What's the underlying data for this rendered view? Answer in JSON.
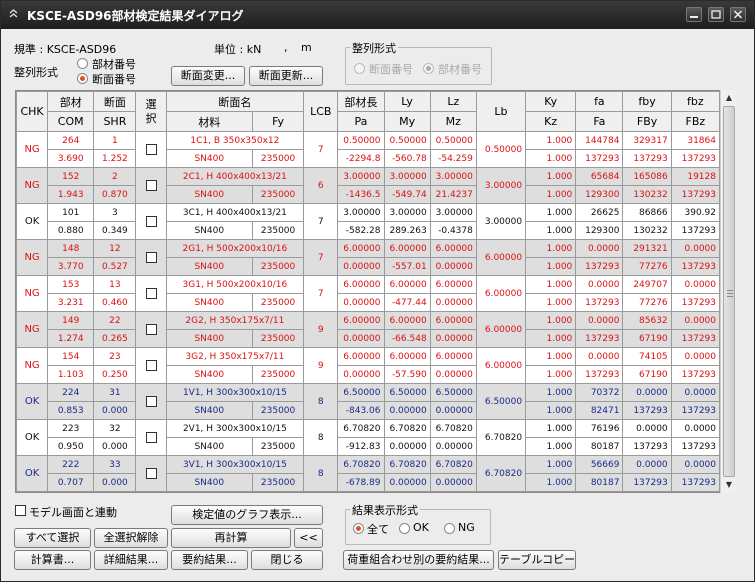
{
  "window": {
    "title": "KSCE-ASD96部材検定結果ダイアログ"
  },
  "info": {
    "standard_label": "規準 : KSCE-ASD96",
    "unit_label": "単位 : kN",
    "unit_sep": ",",
    "unit_len": "m",
    "sort_label": "整列形式",
    "sort_opt1": "部材番号",
    "sort_opt2": "断面番号",
    "group_sort_title": "整列形式",
    "group_opt1": "断面番号",
    "group_opt2": "部材番号"
  },
  "buttons": {
    "section_change": "断面変更...",
    "section_update": "断面更新...",
    "graph": "検定値のグラフ表示...",
    "select_all": "すべて選択",
    "deselect_all": "全選択解除",
    "recalc": "再計算",
    "collapse": "<<",
    "calc_report": "計算書...",
    "detail": "詳細結果...",
    "summary": "要約結果...",
    "close": "閉じる",
    "load_combo_summary": "荷重組合わせ別の要約結果...",
    "table_copy": "テーブルコピー"
  },
  "options": {
    "link_model": "モデル画面と連動",
    "result_group_title": "結果表示形式",
    "all": "全て",
    "ok": "OK",
    "ng": "NG"
  },
  "columns": {
    "chk": "CHK",
    "member": "部材",
    "com": "COM",
    "section": "断面",
    "shr": "SHR",
    "select": "選択",
    "section_name": "断面名",
    "material": "材料",
    "fy": "Fy",
    "lcb": "LCB",
    "member_len": "部材長",
    "pa": "Pa",
    "ly": "Ly",
    "my": "My",
    "lz": "Lz",
    "mz": "Mz",
    "lb": "Lb",
    "ky": "Ky",
    "kz": "Kz",
    "fa_l": "fa",
    "fa_u": "Fa",
    "fby_l": "fby",
    "fby_u": "FBy",
    "fbz_l": "fbz",
    "fbz_u": "FBz"
  },
  "rows": [
    {
      "chk": "NG",
      "color": "r",
      "member": "264",
      "section": "1",
      "com": "3.690",
      "shr": "1.252",
      "name": "1C1, B 350x350x12",
      "mat": "SN400",
      "fy": "235000",
      "lcb": "7",
      "len": "0.50000",
      "pa": "-2294.8",
      "ly": "0.50000",
      "my": "-560.78",
      "lz": "0.50000",
      "mz": "-54.259",
      "lb": "0.50000",
      "ky": "1.000",
      "kz": "1.000",
      "fa": "144784",
      "Fa": "137293",
      "fby": "329317",
      "FBy": "137293",
      "fbz": "31864",
      "FBz": "137293"
    },
    {
      "chk": "NG",
      "color": "r",
      "member": "152",
      "section": "2",
      "com": "1.943",
      "shr": "0.870",
      "name": "2C1, H 400x400x13/21",
      "mat": "SN400",
      "fy": "235000",
      "lcb": "6",
      "len": "3.00000",
      "pa": "-1436.5",
      "ly": "3.00000",
      "my": "-549.74",
      "lz": "3.00000",
      "mz": "21.4237",
      "lb": "3.00000",
      "ky": "1.000",
      "kz": "1.000",
      "fa": "65684",
      "Fa": "129300",
      "fby": "165086",
      "FBy": "130232",
      "fbz": "19128",
      "FBz": "137293"
    },
    {
      "chk": "OK",
      "color": "k",
      "member": "101",
      "section": "3",
      "com": "0.880",
      "shr": "0.349",
      "name": "3C1, H 400x400x13/21",
      "mat": "SN400",
      "fy": "235000",
      "lcb": "7",
      "len": "3.00000",
      "pa": "-582.28",
      "ly": "3.00000",
      "my": "289.263",
      "lz": "3.00000",
      "mz": "-0.4378",
      "lb": "3.00000",
      "ky": "1.000",
      "kz": "1.000",
      "fa": "26625",
      "Fa": "129300",
      "fby": "86866",
      "FBy": "130232",
      "fbz": "390.92",
      "FBz": "137293"
    },
    {
      "chk": "NG",
      "color": "r",
      "member": "148",
      "section": "12",
      "com": "3.770",
      "shr": "0.527",
      "name": "2G1, H 500x200x10/16",
      "mat": "SN400",
      "fy": "235000",
      "lcb": "7",
      "len": "6.00000",
      "pa": "0.00000",
      "ly": "6.00000",
      "my": "-557.01",
      "lz": "6.00000",
      "mz": "0.00000",
      "lb": "6.00000",
      "ky": "1.000",
      "kz": "1.000",
      "fa": "0.0000",
      "Fa": "137293",
      "fby": "291321",
      "FBy": "77276",
      "fbz": "0.0000",
      "FBz": "137293"
    },
    {
      "chk": "NG",
      "color": "r",
      "member": "153",
      "section": "13",
      "com": "3.231",
      "shr": "0.460",
      "name": "3G1, H 500x200x10/16",
      "mat": "SN400",
      "fy": "235000",
      "lcb": "7",
      "len": "6.00000",
      "pa": "0.00000",
      "ly": "6.00000",
      "my": "-477.44",
      "lz": "6.00000",
      "mz": "0.00000",
      "lb": "6.00000",
      "ky": "1.000",
      "kz": "1.000",
      "fa": "0.0000",
      "Fa": "137293",
      "fby": "249707",
      "FBy": "77276",
      "fbz": "0.0000",
      "FBz": "137293"
    },
    {
      "chk": "NG",
      "color": "r",
      "member": "149",
      "section": "22",
      "com": "1.274",
      "shr": "0.265",
      "name": "2G2, H 350x175x7/11",
      "mat": "SN400",
      "fy": "235000",
      "lcb": "9",
      "len": "6.00000",
      "pa": "0.00000",
      "ly": "6.00000",
      "my": "-66.548",
      "lz": "6.00000",
      "mz": "0.00000",
      "lb": "6.00000",
      "ky": "1.000",
      "kz": "1.000",
      "fa": "0.0000",
      "Fa": "137293",
      "fby": "85632",
      "FBy": "67190",
      "fbz": "0.0000",
      "FBz": "137293"
    },
    {
      "chk": "NG",
      "color": "r",
      "member": "154",
      "section": "23",
      "com": "1.103",
      "shr": "0.250",
      "name": "3G2, H 350x175x7/11",
      "mat": "SN400",
      "fy": "235000",
      "lcb": "9",
      "len": "6.00000",
      "pa": "0.00000",
      "ly": "6.00000",
      "my": "-57.590",
      "lz": "6.00000",
      "mz": "0.00000",
      "lb": "6.00000",
      "ky": "1.000",
      "kz": "1.000",
      "fa": "0.0000",
      "Fa": "137293",
      "fby": "74105",
      "FBy": "67190",
      "fbz": "0.0000",
      "FBz": "137293"
    },
    {
      "chk": "OK",
      "color": "b",
      "member": "224",
      "section": "31",
      "com": "0.853",
      "shr": "0.000",
      "name": "1V1, H 300x300x10/15",
      "mat": "SN400",
      "fy": "235000",
      "lcb": "8",
      "len": "6.50000",
      "pa": "-843.06",
      "ly": "6.50000",
      "my": "0.00000",
      "lz": "6.50000",
      "mz": "0.00000",
      "lb": "6.50000",
      "ky": "1.000",
      "kz": "1.000",
      "fa": "70372",
      "Fa": "82471",
      "fby": "0.0000",
      "FBy": "137293",
      "fbz": "0.0000",
      "FBz": "137293"
    },
    {
      "chk": "OK",
      "color": "k",
      "member": "223",
      "section": "32",
      "com": "0.950",
      "shr": "0.000",
      "name": "2V1, H 300x300x10/15",
      "mat": "SN400",
      "fy": "235000",
      "lcb": "8",
      "len": "6.70820",
      "pa": "-912.83",
      "ly": "6.70820",
      "my": "0.00000",
      "lz": "6.70820",
      "mz": "0.00000",
      "lb": "6.70820",
      "ky": "1.000",
      "kz": "1.000",
      "fa": "76196",
      "Fa": "80187",
      "fby": "0.0000",
      "FBy": "137293",
      "fbz": "0.0000",
      "FBz": "137293"
    },
    {
      "chk": "OK",
      "color": "b",
      "member": "222",
      "section": "33",
      "com": "0.707",
      "shr": "0.000",
      "name": "3V1, H 300x300x10/15",
      "mat": "SN400",
      "fy": "235000",
      "lcb": "8",
      "len": "6.70820",
      "pa": "-678.89",
      "ly": "6.70820",
      "my": "0.00000",
      "lz": "6.70820",
      "mz": "0.00000",
      "lb": "6.70820",
      "ky": "1.000",
      "kz": "1.000",
      "fa": "56669",
      "Fa": "80187",
      "fby": "0.0000",
      "FBy": "137293",
      "fbz": "0.0000",
      "FBz": "137293"
    }
  ]
}
